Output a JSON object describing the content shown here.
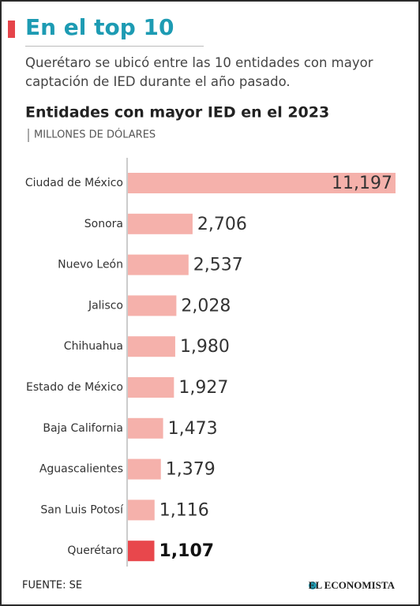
{
  "header": {
    "title": "En el top 10",
    "text": "Querétaro se ubicó entre las 10 entidades con mayor captación de IED durante el año pasado."
  },
  "chart_data": {
    "type": "bar",
    "orientation": "horizontal",
    "title": "Entidades con mayor IED en el 2023",
    "subtitle": "MILLONES DE DÓLARES",
    "categories": [
      "Ciudad de México",
      "Sonora",
      "Nuevo León",
      "Jalisco",
      "Chihuahua",
      "Estado de México",
      "Baja California",
      "Aguascalientes",
      "San Luis Potosí",
      "Querétaro"
    ],
    "values": [
      11197,
      2706,
      2537,
      2028,
      1980,
      1927,
      1473,
      1379,
      1116,
      1107
    ],
    "value_labels": [
      "11,197",
      "2,706",
      "2,537",
      "2,028",
      "1,980",
      "1,927",
      "1,473",
      "1,379",
      "1,116",
      "1,107"
    ],
    "colors": [
      "#f5b1ab",
      "#f5b1ab",
      "#f5b1ab",
      "#f5b1ab",
      "#f5b1ab",
      "#f5b1ab",
      "#f5b1ab",
      "#f5b1ab",
      "#f5b1ab",
      "#e8474c"
    ]
  },
  "footer": {
    "source": "FUENTE: SE",
    "publisher": "EL ECONOMISTA"
  }
}
